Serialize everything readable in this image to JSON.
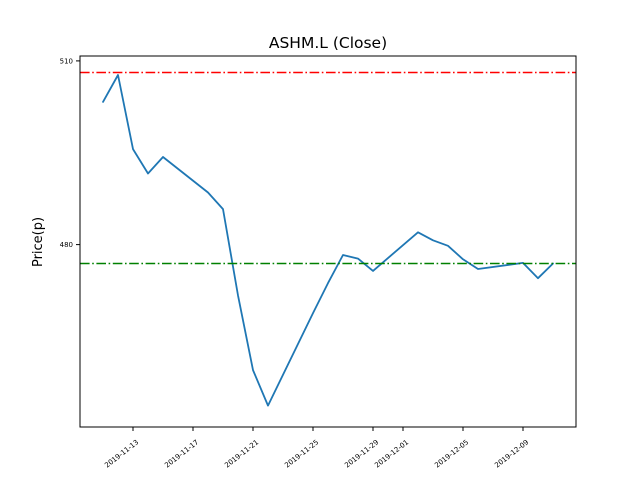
{
  "figure": {
    "background": "#ffffff"
  },
  "chart_data": {
    "type": "line",
    "title": "ASHM.L (Close)",
    "xlabel": "",
    "ylabel": "Price(p)",
    "grid": false,
    "legend": "none",
    "ylim": [
      450.2,
      510.8
    ],
    "xlim_days": [
      -1.53,
      31.53
    ],
    "series": [
      {
        "name": "Close",
        "color": "#1f77b4",
        "points": [
          {
            "date": "2019-11-11",
            "day": 0,
            "value": 503.3
          },
          {
            "date": "2019-11-12",
            "day": 1,
            "value": 507.7
          },
          {
            "date": "2019-11-13",
            "day": 2,
            "value": 495.6
          },
          {
            "date": "2019-11-14",
            "day": 3,
            "value": 491.6
          },
          {
            "date": "2019-11-15",
            "day": 4,
            "value": 494.3
          },
          {
            "date": "2019-11-18",
            "day": 7,
            "value": 488.5
          },
          {
            "date": "2019-11-19",
            "day": 8,
            "value": 485.8
          },
          {
            "date": "2019-11-20",
            "day": 9,
            "value": 471.7
          },
          {
            "date": "2019-11-21",
            "day": 10,
            "value": 459.5
          },
          {
            "date": "2019-11-22",
            "day": 11,
            "value": 453.7
          },
          {
            "date": "2019-11-25",
            "day": 14,
            "value": 468.8
          },
          {
            "date": "2019-11-26",
            "day": 15,
            "value": 473.7
          },
          {
            "date": "2019-11-27",
            "day": 16,
            "value": 478.3
          },
          {
            "date": "2019-11-28",
            "day": 17,
            "value": 477.7
          },
          {
            "date": "2019-11-29",
            "day": 18,
            "value": 475.7
          },
          {
            "date": "2019-12-02",
            "day": 21,
            "value": 482.0
          },
          {
            "date": "2019-12-03",
            "day": 22,
            "value": 480.7
          },
          {
            "date": "2019-12-04",
            "day": 23,
            "value": 479.8
          },
          {
            "date": "2019-12-05",
            "day": 24,
            "value": 477.6
          },
          {
            "date": "2019-12-06",
            "day": 25,
            "value": 476.0
          },
          {
            "date": "2019-12-09",
            "day": 28,
            "value": 477.0
          },
          {
            "date": "2019-12-10",
            "day": 29,
            "value": 474.5
          },
          {
            "date": "2019-12-11",
            "day": 30,
            "value": 476.9
          }
        ]
      }
    ],
    "reference_lines": [
      {
        "name": "upper-reference",
        "value": 508.1,
        "color": "#ff0000",
        "style": "dashdot"
      },
      {
        "name": "lower-reference",
        "value": 476.9,
        "color": "#008000",
        "style": "dashdot"
      }
    ],
    "yticks": [
      {
        "value": 510,
        "label": "510"
      },
      {
        "value": 480,
        "label": "480"
      }
    ],
    "xticks": [
      {
        "day": 2,
        "label": "2019-11-13"
      },
      {
        "day": 6,
        "label": "2019-11-17"
      },
      {
        "day": 10,
        "label": "2019-11-21"
      },
      {
        "day": 14,
        "label": "2019-11-25"
      },
      {
        "day": 18,
        "label": "2019-11-29"
      },
      {
        "day": 20,
        "label": "2019-12-01"
      },
      {
        "day": 24,
        "label": "2019-12-05"
      },
      {
        "day": 28,
        "label": "2019-12-09"
      }
    ]
  }
}
